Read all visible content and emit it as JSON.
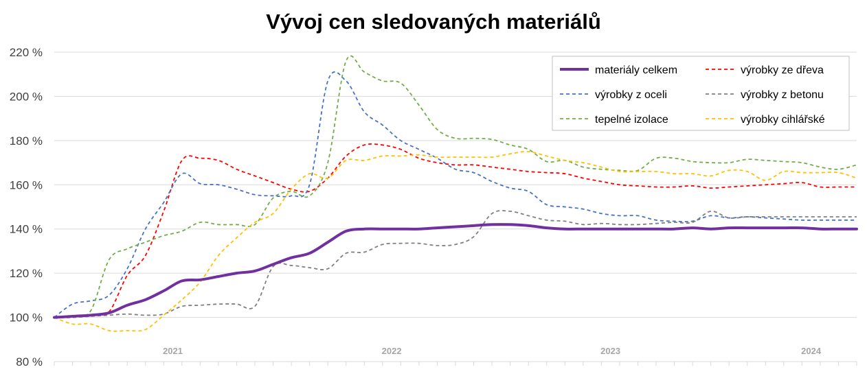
{
  "title": "Vývoj cen sledovaných materiálů",
  "chart_data": {
    "type": "line",
    "title": "Vývoj cen sledovaných materiálů",
    "xlabel": "",
    "ylabel": "",
    "ylim": [
      80,
      220
    ],
    "y_ticks": [
      "80 %",
      "100 %",
      "120 %",
      "140 %",
      "160 %",
      "180 %",
      "200 %",
      "220 %"
    ],
    "y_tick_values": [
      80,
      100,
      120,
      140,
      160,
      180,
      200,
      220
    ],
    "year_labels": [
      {
        "label": "2021",
        "x": 6.5
      },
      {
        "label": "2022",
        "x": 18.5
      },
      {
        "label": "2023",
        "x": 30.5
      },
      {
        "label": "2024",
        "x": 41.5
      }
    ],
    "x_count": 45,
    "grid": true,
    "legend_position": "top-right",
    "series": [
      {
        "name": "materiály celkem",
        "color": "#7030a0",
        "style": "solid",
        "values": [
          100,
          100.5,
          101,
          102,
          105.5,
          108,
          112,
          116.5,
          117,
          118.5,
          120,
          121,
          124,
          127,
          129,
          134,
          139,
          140,
          140,
          140,
          140,
          140.5,
          141,
          141.5,
          142,
          142,
          141.5,
          140.5,
          140,
          140,
          140,
          140,
          140,
          140,
          140,
          140.5,
          140,
          140.5,
          140.5,
          140.5,
          140.5,
          140.5,
          140,
          140,
          140
        ]
      },
      {
        "name": "výrobky ze dřeva",
        "color": "#ff0000",
        "style": "dashed",
        "values": [
          100,
          100,
          101,
          102.5,
          119,
          128,
          148,
          171,
          172,
          171,
          167,
          164,
          161,
          158,
          157,
          163,
          173,
          178,
          178,
          176,
          172,
          170,
          169,
          169,
          168,
          167,
          166,
          165.5,
          165,
          163,
          161.5,
          160,
          159.5,
          159,
          159,
          159.5,
          158.5,
          159,
          159.5,
          160,
          160.5,
          161,
          159,
          159,
          159
        ]
      },
      {
        "name": "výrobky z oceli",
        "color": "#4472c4",
        "style": "dashed",
        "values": [
          100,
          106,
          107.5,
          110,
          122,
          140,
          152,
          165,
          160.5,
          160,
          158,
          155.5,
          155,
          155,
          160,
          207,
          207,
          193,
          187,
          180,
          176,
          172,
          167,
          165.5,
          161.5,
          158.5,
          157,
          151,
          150,
          149,
          147,
          146,
          146,
          144,
          143.5,
          143.5,
          146,
          145,
          145.5,
          145,
          144.5,
          144,
          144,
          144,
          144
        ]
      },
      {
        "name": "výrobky z betonu",
        "color": "#7f7f7f",
        "style": "dashed",
        "values": [
          100,
          100,
          100.5,
          101,
          101.5,
          101,
          101.5,
          105,
          105.5,
          106,
          106,
          105,
          123,
          123.5,
          122.5,
          122,
          129,
          129.5,
          133,
          133.5,
          133.5,
          132.5,
          133,
          136.5,
          147,
          148,
          146,
          144,
          143.5,
          142,
          142.5,
          142,
          142,
          142.5,
          143,
          143,
          148,
          145,
          145.5,
          145.5,
          145.5,
          145.5,
          145.5,
          145.5,
          145.5
        ]
      },
      {
        "name": "tepelné izolace",
        "color": "#70ad47",
        "style": "dashed",
        "values": [
          100,
          100.5,
          103,
          126,
          131,
          134,
          137,
          139,
          143,
          142,
          142,
          142,
          154,
          157,
          155,
          170,
          216,
          211,
          207,
          206,
          196,
          185,
          181,
          181,
          180.5,
          178,
          176,
          170.5,
          171,
          168,
          167,
          166.5,
          166.5,
          172,
          172,
          170.5,
          170,
          170,
          171.5,
          171,
          170.5,
          170,
          168,
          167,
          169
        ]
      },
      {
        "name": "výrobky cihlářské",
        "color": "#ffc000",
        "style": "dashed",
        "values": [
          100,
          97,
          97,
          94,
          94,
          94.5,
          101,
          108,
          116,
          128,
          136,
          143,
          147,
          158,
          165,
          163,
          171,
          171,
          173,
          173,
          173.5,
          172.5,
          172.5,
          172.5,
          172.5,
          174,
          175,
          173,
          171,
          170,
          168,
          166,
          166,
          166,
          165,
          165,
          164,
          166.5,
          166,
          162,
          166,
          165.5,
          165.5,
          165.5,
          163
        ]
      }
    ]
  }
}
